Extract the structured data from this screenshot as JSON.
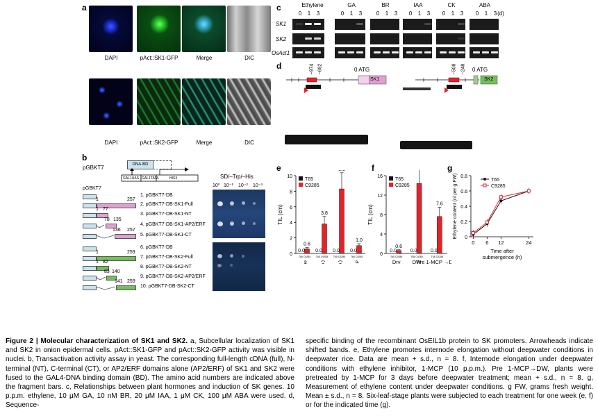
{
  "panel_a": {
    "label": "a",
    "row1_captions": [
      "DAPI",
      "pAct::SK1-GFP",
      "Merge",
      "DIC"
    ],
    "row2_captions": [
      "DAPI",
      "pAct::SK2-GFP",
      "Merge",
      "DIC"
    ]
  },
  "panel_b": {
    "label": "b",
    "vector_label": "pGBKT7",
    "dna_bd": "DNA-BD",
    "gal1uas": "GAL1UAS",
    "gal1tata": "GAL1TATA",
    "his3": "HIS3",
    "construct_header": "pGBKT7",
    "media": "SD/–Trp/–His",
    "dilutions": [
      "10⁰",
      "10⁻¹",
      "10⁻²",
      "10⁻³"
    ],
    "constructs": [
      {
        "name": "1. pGBKT7-DB"
      },
      {
        "name": "2. pGBKT7-DB-SK1-Full",
        "start": "1",
        "end": "257"
      },
      {
        "name": "3. pGBKT7-DB-SK1-NT",
        "start": "1",
        "end": "77"
      },
      {
        "name": "4. pGBKT7-DB-SK1-AP2/ERF",
        "start": "78",
        "end": "135"
      },
      {
        "name": "5. pGBKT7-DB-SK1-CT",
        "start": "136",
        "end": "257"
      },
      {
        "name": "6. pGBKT7-DB"
      },
      {
        "name": "7. pGBKT7-DB-SK2-Full",
        "start": "1",
        "end": "259"
      },
      {
        "name": "8. pGBKT7-DB-SK2-NT",
        "start": "1",
        "end": "82"
      },
      {
        "name": "9. pGBKT7-DB-SK2-AP2/ERF",
        "start": "83",
        "end": "140"
      },
      {
        "name": "10. pGBKT7-DB-SK2-CT",
        "start": "141",
        "end": "259"
      }
    ]
  },
  "panel_c": {
    "label": "c",
    "treatments": [
      "Ethylene",
      "GA",
      "BR",
      "IAA",
      "CK",
      "ABA"
    ],
    "timepoints": [
      "0",
      "1",
      "3"
    ],
    "unit": "(d)",
    "genes": [
      "SK1",
      "SK2",
      "OsAct1"
    ]
  },
  "panel_d": {
    "label": "d",
    "left_positions": [
      "–974",
      "–692"
    ],
    "left_atg": "0 ATG",
    "left_gene": "SK1",
    "right_positions": [
      "–508",
      "–248"
    ],
    "right_atg": "0 ATG",
    "right_gene": "SK2"
  },
  "colors": {
    "T65": "#111111",
    "C9285": "#e2232a",
    "sk1_box": "#e0a0d3",
    "sk2_box": "#73c05a"
  },
  "chart_data": [
    {
      "panel": "e",
      "type": "bar",
      "ylabel": "TIL (cm)",
      "ylim": [
        0,
        10
      ],
      "yticks": [
        "0",
        "2",
        "4",
        "6",
        "8",
        "10"
      ],
      "legend": [
        "T65",
        "C9285"
      ],
      "categories": [
        "–Ethylene",
        "Ethylene (10 p.p.m.)",
        "Ethylene (100 p.p.m.)",
        "Ethylene (100 p.p.m.) + 1-MCP"
      ],
      "sublabels": "T65 C9285",
      "series": [
        {
          "name": "T65",
          "values": [
            0.0,
            0.0,
            0.0,
            0.0
          ],
          "labels": [
            "0.0",
            "0.0",
            "0.0",
            "0.0"
          ]
        },
        {
          "name": "C9285",
          "values": [
            0.6,
            3.8,
            8.3,
            1.0
          ],
          "labels": [
            "0.6",
            "3.8",
            "8.3",
            "1.0"
          ]
        }
      ]
    },
    {
      "panel": "f",
      "type": "bar",
      "ylabel": "TIL (cm)",
      "ylim": [
        0,
        16
      ],
      "yticks": [
        "0",
        "4",
        "8",
        "12",
        "16"
      ],
      "legend": [
        "T65",
        "C9285"
      ],
      "categories": [
        "Dry",
        "DW",
        "Pre 1-MCP →DW"
      ],
      "sublabels": "T65 C9285",
      "series": [
        {
          "name": "T65",
          "values": [
            0.0,
            0.0,
            0.0
          ],
          "labels": [
            "0.0",
            "0.0",
            "0.0"
          ]
        },
        {
          "name": "C9285",
          "values": [
            0.6,
            14.4,
            7.6
          ],
          "labels": [
            "0.6",
            "14.4",
            "7.6"
          ]
        }
      ]
    },
    {
      "panel": "g",
      "type": "line",
      "ylabel": "Ethylene content (nl per g FW)",
      "xlabel": "Time after submergence (h)",
      "x": [
        0,
        6,
        12,
        24
      ],
      "xticks": [
        "0",
        "6",
        "12",
        "24"
      ],
      "ylim": [
        0,
        0.8
      ],
      "yticks": [
        "0",
        "0.2",
        "0.4",
        "0.6",
        "0.8"
      ],
      "legend": [
        "T65",
        "C9285"
      ],
      "series": [
        {
          "name": "T65",
          "values": [
            0.03,
            0.17,
            0.47,
            0.6
          ]
        },
        {
          "name": "C9285",
          "values": [
            0.05,
            0.19,
            0.52,
            0.6
          ]
        }
      ]
    }
  ],
  "panel_labels": {
    "e": "e",
    "f": "f",
    "g": "g"
  },
  "caption_left": {
    "title": "Figure 2 | Molecular characterization of SK1 and SK2.",
    "text": "a, Subcellular localization of SK1 and SK2 in onion epidermal cells. pAct::SK1-GFP and pAct::SK2-GFP activity was visible in nuclei. b, Transactivation activity assay in yeast. The corresponding full-length cDNA (full), N-terminal (NT), C-terminal (CT), or AP2/ERF domains alone (AP2/ERF) of SK1 and SK2 were fused to the GAL4-DNA binding domain (BD). The amino acid numbers are indicated above the fragment bars. c, Relationships between plant hormones and induction of SK genes. 10 p.p.m. ethylene, 10 μM GA, 10 nM BR, 20 μM IAA, 1 μM CK, 100 μM ABA were used. d, Sequence-"
  },
  "caption_right": {
    "text": "specific binding of the recombinant OsEIL1b protein to SK promoters. Arrowheads indicate shifted bands. e, Ethylene promotes internode elongation without deepwater conditions in deepwater rice. Data are mean + s.d., n = 8. f, Internode elongation under deepwater conditions with ethylene inhibitor, 1-MCP (10 p.p.m.). Pre 1-MCP→DW, plants were pretreated by 1-MCP for 3 days before deepwater treatment; mean + s.d., n = 8. g, Measurement of ethylene content under deepwater conditions. g FW, grams fresh weight. Mean ± s.d., n = 8. Six-leaf-stage plants were subjected to each treatment for one week (e, f) or for the indicated time (g)."
  }
}
